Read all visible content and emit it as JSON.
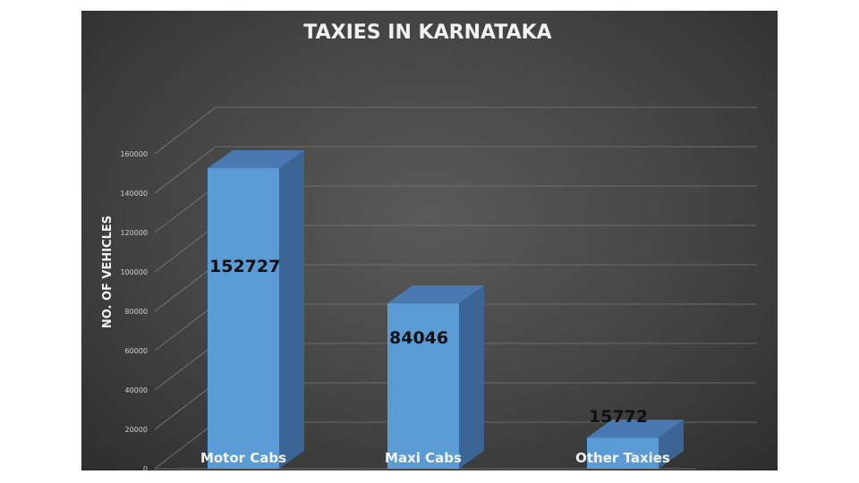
{
  "chart_data": {
    "type": "bar",
    "title": "TAXIES IN KARNATAKA",
    "xlabel": "",
    "ylabel": "NO. OF VEHICLES",
    "categories": [
      "Motor Cabs",
      "Maxi Cabs",
      "Other Taxies"
    ],
    "values": [
      152727,
      84046,
      15772
    ],
    "data_labels": [
      "152727",
      "84046",
      "15772"
    ],
    "ylim": [
      0,
      160000
    ],
    "yticks": [
      0,
      20000,
      40000,
      60000,
      80000,
      100000,
      120000,
      140000,
      160000
    ],
    "ytick_labels": [
      "0",
      "20000",
      "40000",
      "60000",
      "80000",
      "100000",
      "120000",
      "140000",
      "160000"
    ],
    "grid": true,
    "legend": "none",
    "style": "3d-column",
    "colors": {
      "bar_front": "#5b9bd5",
      "bar_top": "#4a78b0",
      "bar_side": "#3a6595",
      "background": "#444444",
      "gridline": "#7a7a7a"
    }
  }
}
